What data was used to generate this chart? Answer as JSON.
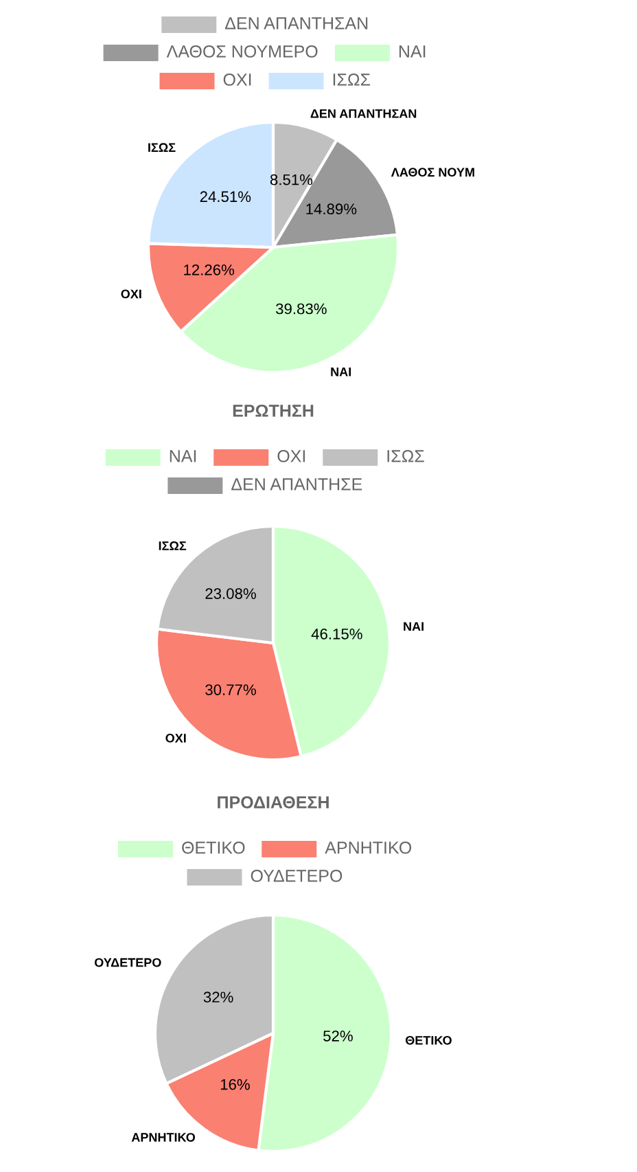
{
  "chart_data": [
    {
      "type": "pie",
      "legend": "top",
      "categories": [
        "ΔΕΝ ΑΠΑΝΤΗΣΑΝ",
        "ΛΑΘΟΣ ΝΟΥΜΕΡΟ",
        "ΝΑΙ",
        "ΟΧΙ",
        "ΙΣΩΣ"
      ],
      "values": [
        8.51,
        14.89,
        39.83,
        12.26,
        24.51
      ],
      "colors": [
        "#c0c0c0",
        "#999999",
        "#ccffcc",
        "#fa8072",
        "#cce5ff"
      ],
      "value_labels": [
        "8.51%",
        "14.89%",
        "39.83%",
        "12.26%",
        "24.51%"
      ],
      "annotations": [
        "ΔΕΝ ΑΠΑΝΤΗΣΑΝ",
        "ΛΑΘΟΣ ΝΟΥΜ",
        "ΝΑΙ",
        "ΟΧΙ",
        "ΙΣΩΣ"
      ]
    },
    {
      "type": "pie",
      "title": "ΕΡΩΤΗΣΗ",
      "legend": "top",
      "categories": [
        "ΝΑΙ",
        "ΟΧΙ",
        "ΙΣΩΣ",
        "ΔΕΝ ΑΠΑΝΤΗΣΕ"
      ],
      "values": [
        46.15,
        30.77,
        23.08,
        0
      ],
      "colors": [
        "#ccffcc",
        "#fa8072",
        "#c0c0c0",
        "#999999"
      ],
      "value_labels": [
        "46.15%",
        "30.77%",
        "23.08%",
        null
      ],
      "annotations": [
        "ΝΑΙ",
        "ΟΧΙ",
        "ΙΣΩΣ"
      ]
    },
    {
      "type": "pie",
      "title": "ΠΡΟΔΙΑΘΕΣΗ",
      "legend": "top",
      "categories": [
        "ΘΕΤΙΚΟ",
        "ΑΡΝΗΤΙΚΟ",
        "ΟΥΔΕΤΕΡΟ"
      ],
      "values": [
        52,
        16,
        32
      ],
      "colors": [
        "#ccffcc",
        "#fa8072",
        "#c0c0c0"
      ],
      "value_labels": [
        "52%",
        "16%",
        "32%"
      ],
      "annotations": [
        "ΘΕΤΙΚΟ",
        "ΑΡΝΗΤΙΚΟ",
        "ΟΥΔΕΤΕΡΟ"
      ]
    }
  ]
}
